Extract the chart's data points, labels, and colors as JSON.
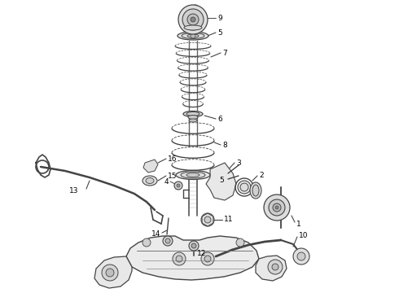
{
  "background_color": "#ffffff",
  "line_color": "#444444",
  "label_color": "#000000",
  "fig_width": 4.9,
  "fig_height": 3.6,
  "dpi": 100
}
